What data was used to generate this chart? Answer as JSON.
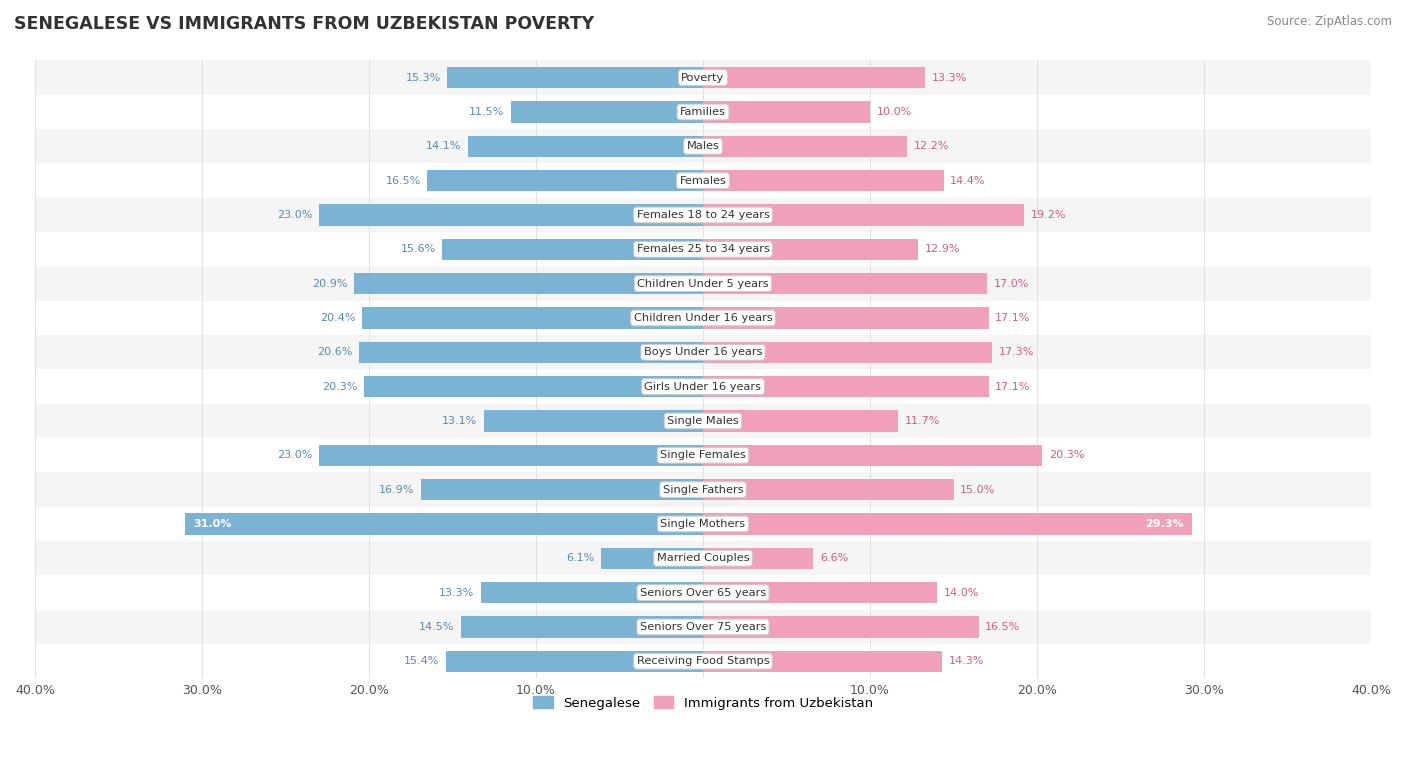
{
  "title": "SENEGALESE VS IMMIGRANTS FROM UZBEKISTAN POVERTY",
  "source": "Source: ZipAtlas.com",
  "categories": [
    "Poverty",
    "Families",
    "Males",
    "Females",
    "Females 18 to 24 years",
    "Females 25 to 34 years",
    "Children Under 5 years",
    "Children Under 16 years",
    "Boys Under 16 years",
    "Girls Under 16 years",
    "Single Males",
    "Single Females",
    "Single Fathers",
    "Single Mothers",
    "Married Couples",
    "Seniors Over 65 years",
    "Seniors Over 75 years",
    "Receiving Food Stamps"
  ],
  "senegalese": [
    15.3,
    11.5,
    14.1,
    16.5,
    23.0,
    15.6,
    20.9,
    20.4,
    20.6,
    20.3,
    13.1,
    23.0,
    16.9,
    31.0,
    6.1,
    13.3,
    14.5,
    15.4
  ],
  "uzbekistan": [
    13.3,
    10.0,
    12.2,
    14.4,
    19.2,
    12.9,
    17.0,
    17.1,
    17.3,
    17.1,
    11.7,
    20.3,
    15.0,
    29.3,
    6.6,
    14.0,
    16.5,
    14.3
  ],
  "blue_color": "#7ab3d4",
  "pink_color": "#f0a0b8",
  "blue_label_color": "#5a8ab0",
  "pink_label_color": "#cc6080",
  "white_label_color": "#ffffff",
  "max_val": 40.0,
  "bar_height": 0.62,
  "legend_blue": "Senegalese",
  "legend_pink": "Immigrants from Uzbekistan",
  "xtick_labels": [
    "40.0%",
    "30.0%",
    "20.0%",
    "10.0%",
    "",
    "10.0%",
    "20.0%",
    "30.0%",
    "40.0%"
  ],
  "xtick_vals": [
    -40,
    -30,
    -20,
    -10,
    0,
    10,
    20,
    30,
    40
  ]
}
